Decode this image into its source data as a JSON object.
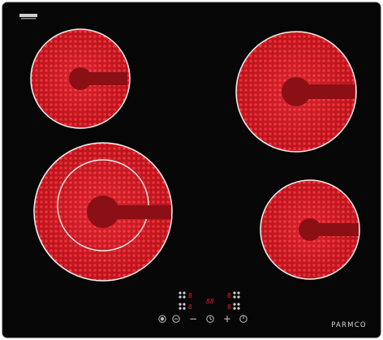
{
  "brand": {
    "name": "PARMCO",
    "logo_badge": "LOGO"
  },
  "controls": {
    "display_center": "88",
    "zone_digits": [
      "8",
      "8",
      "8",
      "8"
    ],
    "keys": [
      "power-key",
      "lock-key",
      "minus-key",
      "timer-key",
      "plus-key",
      "power-key-right"
    ],
    "minus_label": "−",
    "plus_label": "+"
  },
  "colors": {
    "glass": "#050505",
    "element_red": "#d81a26",
    "element_dark": "#8a1016",
    "ring": "#e8e8e8",
    "display_red": "#e02020"
  }
}
